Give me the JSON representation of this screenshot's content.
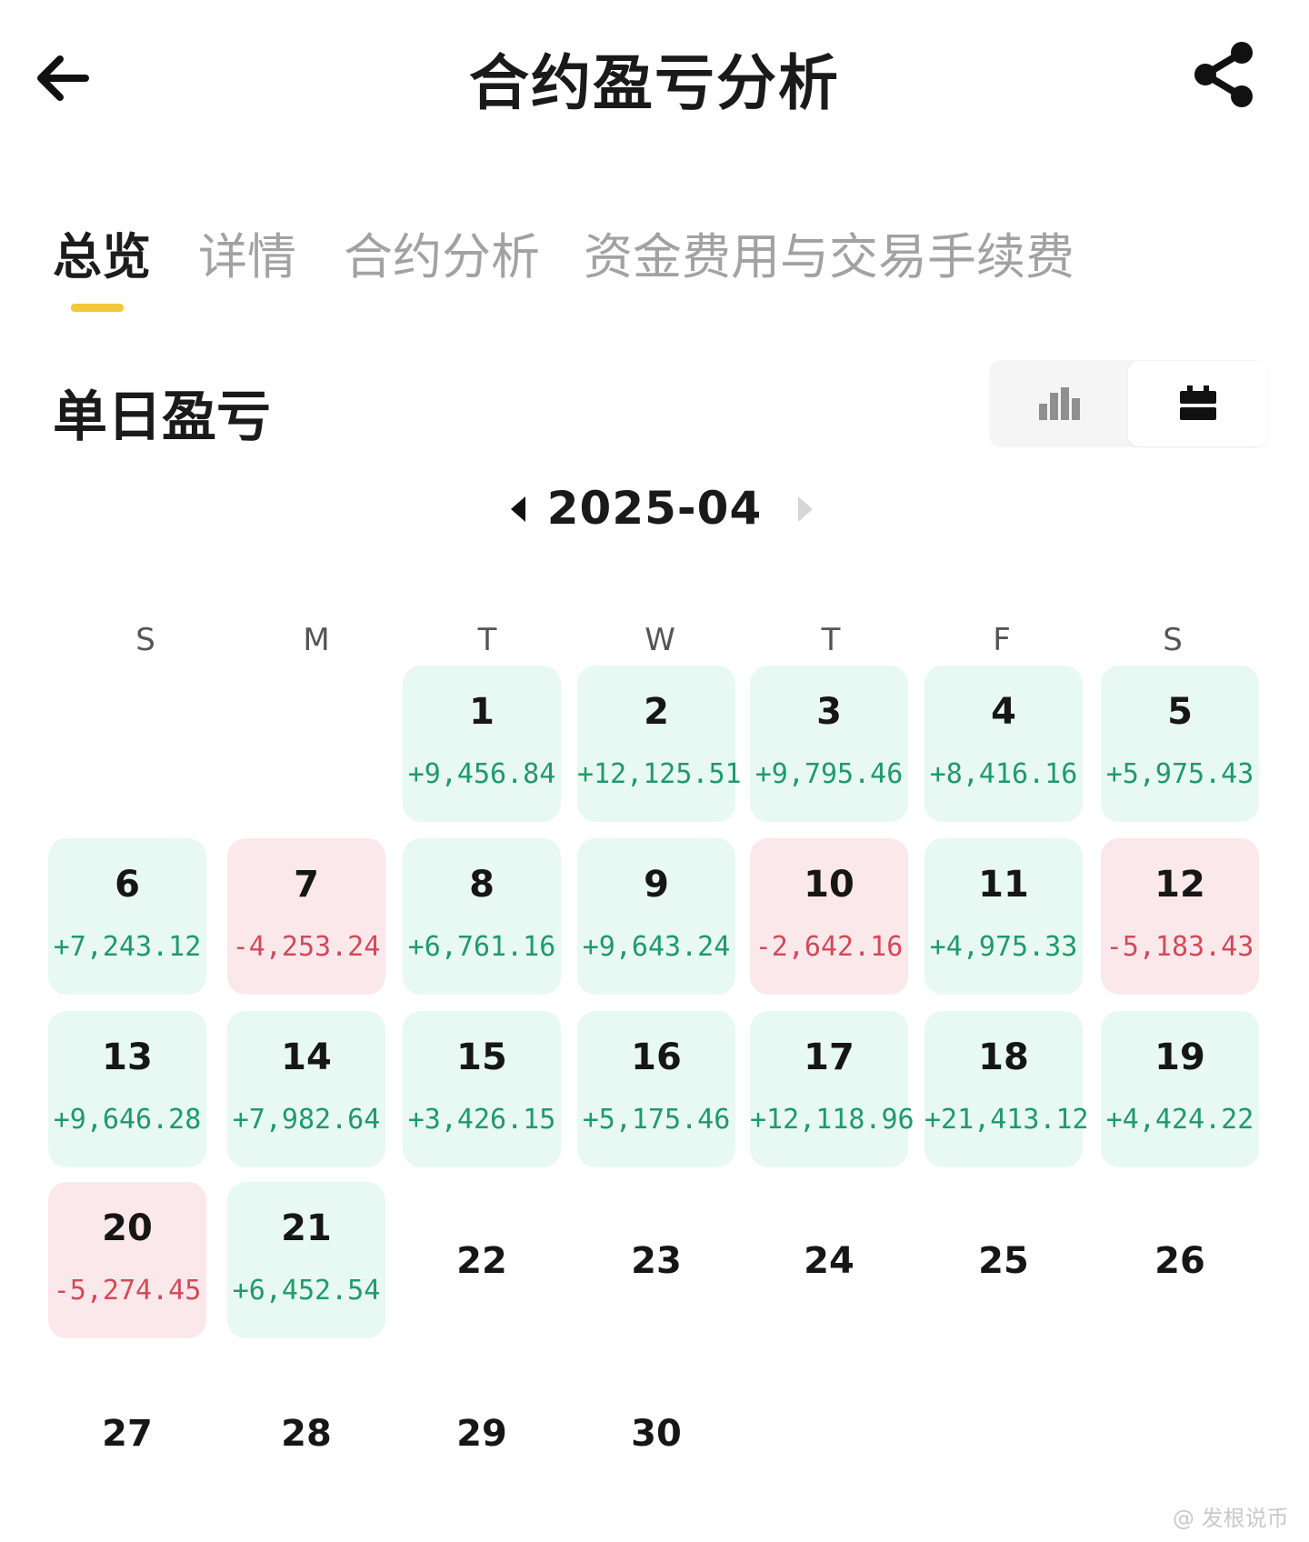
{
  "header": {
    "title": "合约盈亏分析"
  },
  "tabs": [
    {
      "label": "总览",
      "active": true
    },
    {
      "label": "详情",
      "active": false
    },
    {
      "label": "合约分析",
      "active": false
    },
    {
      "label": "资金费用与交易手续费",
      "active": false
    }
  ],
  "section": {
    "title": "单日盈亏",
    "view_options": [
      "bar-chart-icon",
      "calendar-icon"
    ],
    "selected_view": "calendar"
  },
  "calendar": {
    "month": "2025-04",
    "weekdays": [
      "S",
      "M",
      "T",
      "W",
      "T",
      "F",
      "S"
    ],
    "start_offset": 2,
    "days": [
      {
        "day": "1",
        "pnl": "+9,456.84",
        "status": "profit"
      },
      {
        "day": "2",
        "pnl": "+12,125.51",
        "status": "profit"
      },
      {
        "day": "3",
        "pnl": "+9,795.46",
        "status": "profit"
      },
      {
        "day": "4",
        "pnl": "+8,416.16",
        "status": "profit"
      },
      {
        "day": "5",
        "pnl": "+5,975.43",
        "status": "profit"
      },
      {
        "day": "6",
        "pnl": "+7,243.12",
        "status": "profit"
      },
      {
        "day": "7",
        "pnl": "-4,253.24",
        "status": "loss"
      },
      {
        "day": "8",
        "pnl": "+6,761.16",
        "status": "profit"
      },
      {
        "day": "9",
        "pnl": "+9,643.24",
        "status": "profit"
      },
      {
        "day": "10",
        "pnl": "-2,642.16",
        "status": "loss"
      },
      {
        "day": "11",
        "pnl": "+4,975.33",
        "status": "profit"
      },
      {
        "day": "12",
        "pnl": "-5,183.43",
        "status": "loss"
      },
      {
        "day": "13",
        "pnl": "+9,646.28",
        "status": "profit"
      },
      {
        "day": "14",
        "pnl": "+7,982.64",
        "status": "profit"
      },
      {
        "day": "15",
        "pnl": "+3,426.15",
        "status": "profit"
      },
      {
        "day": "16",
        "pnl": "+5,175.46",
        "status": "profit"
      },
      {
        "day": "17",
        "pnl": "+12,118.96",
        "status": "profit"
      },
      {
        "day": "18",
        "pnl": "+21,413.12",
        "status": "profit"
      },
      {
        "day": "19",
        "pnl": "+4,424.22",
        "status": "profit"
      },
      {
        "day": "20",
        "pnl": "-5,274.45",
        "status": "loss"
      },
      {
        "day": "21",
        "pnl": "+6,452.54",
        "status": "profit"
      },
      {
        "day": "22",
        "pnl": "",
        "status": "empty"
      },
      {
        "day": "23",
        "pnl": "",
        "status": "empty"
      },
      {
        "day": "24",
        "pnl": "",
        "status": "empty"
      },
      {
        "day": "25",
        "pnl": "",
        "status": "empty"
      },
      {
        "day": "26",
        "pnl": "",
        "status": "empty"
      },
      {
        "day": "27",
        "pnl": "",
        "status": "empty"
      },
      {
        "day": "28",
        "pnl": "",
        "status": "empty"
      },
      {
        "day": "29",
        "pnl": "",
        "status": "empty"
      },
      {
        "day": "30",
        "pnl": "",
        "status": "empty"
      }
    ]
  },
  "colors": {
    "profit_text": "#1f9a6b",
    "loss_text": "#d14a5a",
    "profit_bg": "#e8f8f3",
    "loss_bg": "#fbe8ea",
    "tab_indicator": "#f3c93a"
  },
  "watermark": "@ 发根说币"
}
